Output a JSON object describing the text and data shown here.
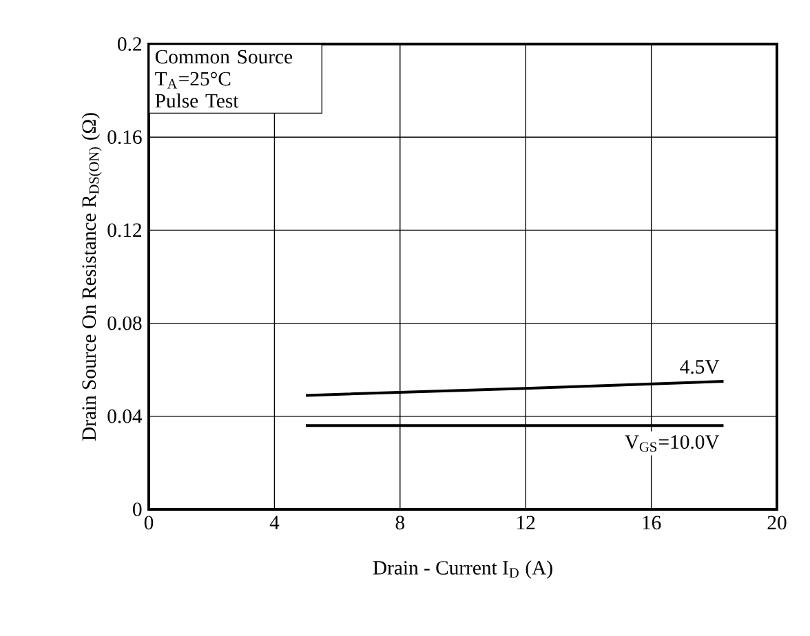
{
  "chart_data": {
    "type": "line",
    "xlabel": "Drain - Current  I$_{D}$ (A)",
    "ylabel": "Drain Source On Resistance  R$_{DS(ON)}$ (Ω)",
    "xlim": [
      0,
      20
    ],
    "xticks": [
      0,
      4,
      8,
      12,
      16,
      20
    ],
    "ylim": [
      0,
      0.2
    ],
    "yticks": [
      0,
      0.04,
      0.08,
      0.12,
      0.16,
      0.2
    ],
    "grid": true,
    "series": [
      {
        "name": "4.5V",
        "color": "#000000",
        "x": [
          5.0,
          12,
          18.3
        ],
        "values": [
          0.049,
          0.052,
          0.055
        ]
      },
      {
        "name": "V$_{GS}$=10.0V",
        "color": "#000000",
        "x": [
          5.0,
          12,
          18.3
        ],
        "values": [
          0.036,
          0.036,
          0.036
        ]
      }
    ],
    "annotations": [
      "Common Source",
      "T$_{A}$=25°C",
      "Pulse Test"
    ]
  }
}
